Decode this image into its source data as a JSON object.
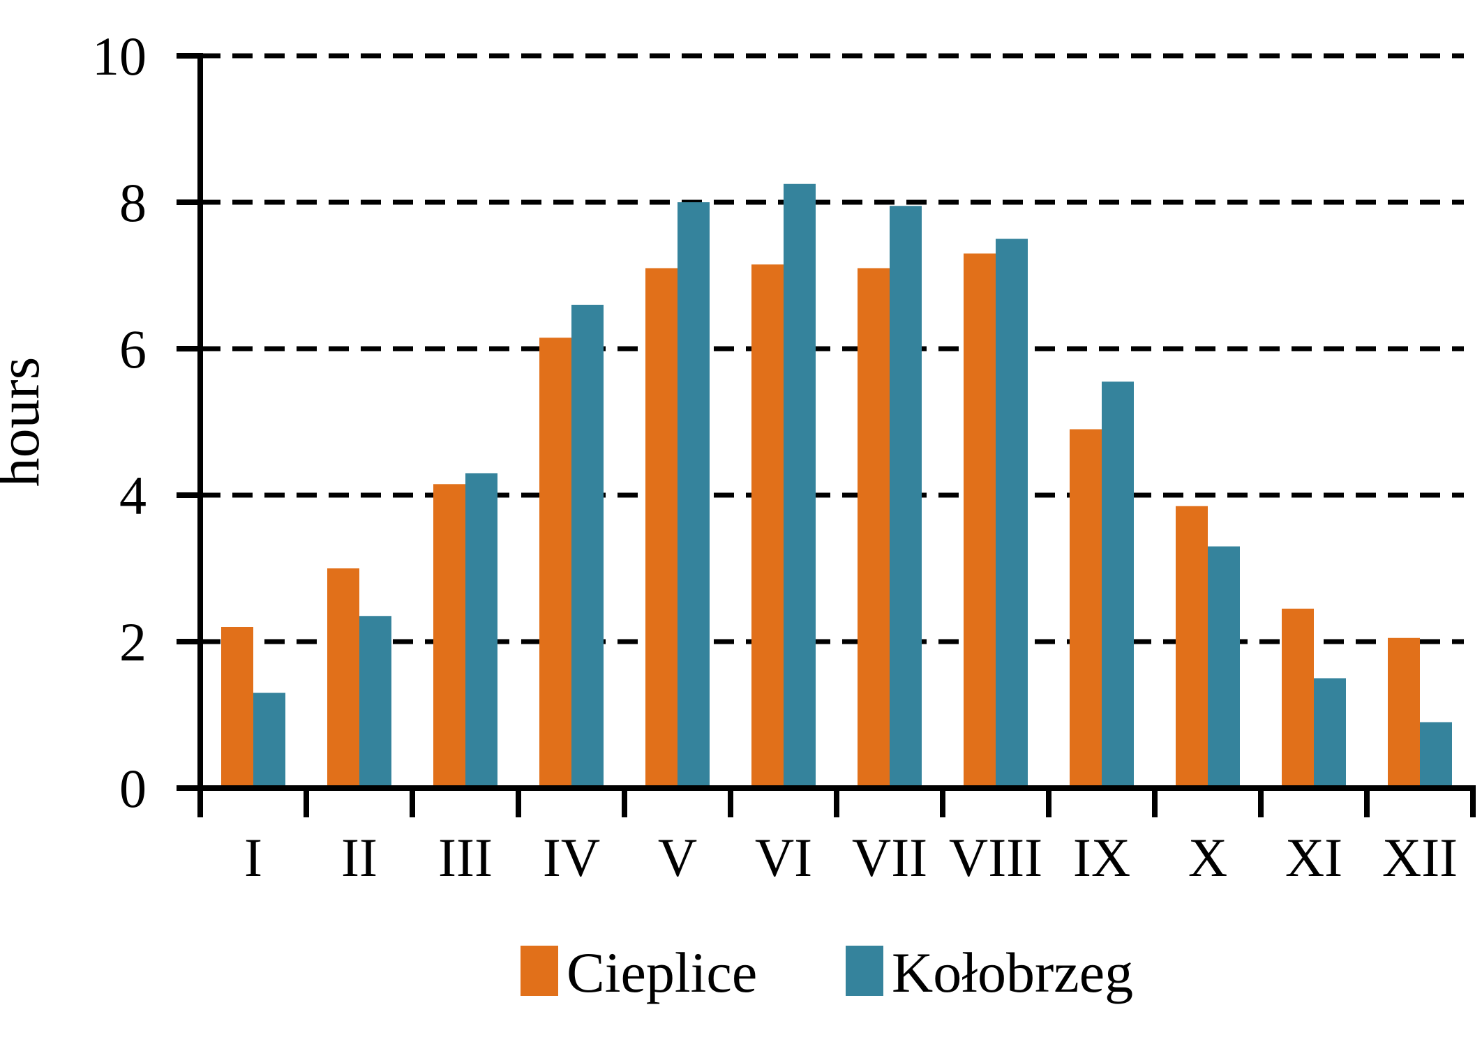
{
  "chart_data": {
    "type": "bar",
    "title": "",
    "xlabel": "",
    "ylabel": "hours",
    "categories": [
      "I",
      "II",
      "III",
      "IV",
      "V",
      "VI",
      "VII",
      "VIII",
      "IX",
      "X",
      "XI",
      "XII"
    ],
    "series": [
      {
        "name": "Cieplice",
        "color": "#E1701A",
        "values": [
          2.2,
          3.0,
          4.15,
          6.15,
          7.1,
          7.15,
          7.1,
          7.3,
          4.9,
          3.85,
          2.45,
          2.05
        ]
      },
      {
        "name": "Kołobrzeg",
        "color": "#35839C",
        "values": [
          1.3,
          2.35,
          4.3,
          6.6,
          8.0,
          8.25,
          7.95,
          7.5,
          5.55,
          3.3,
          1.5,
          0.9
        ]
      }
    ],
    "ylim": [
      0,
      10
    ],
    "yticks": [
      0,
      2,
      4,
      6,
      8,
      10
    ],
    "ytick_labels": [
      "0",
      "2",
      "4",
      "6",
      "8",
      "10"
    ],
    "grid": {
      "horizontal": true,
      "style": "dashed",
      "color": "#000000",
      "at": [
        2,
        4,
        6,
        8,
        10
      ]
    },
    "legend_position": "bottom-center",
    "axis_color": "#000000",
    "text_color": "#000000",
    "background": "#FFFFFF"
  }
}
